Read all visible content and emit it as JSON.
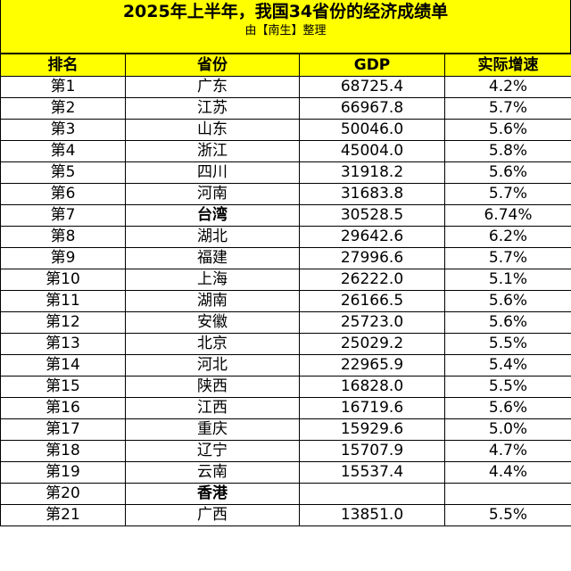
{
  "header": {
    "title": "2025年上半年，我国34省份的经济成绩单",
    "subtitle": "由【南生】整理",
    "colors": {
      "header_bg": "#ffff00",
      "border": "#000000"
    }
  },
  "table": {
    "columns": [
      "排名",
      "省份",
      "GDP",
      "实际增速"
    ],
    "rows": [
      {
        "rank": "第1",
        "province": "广东",
        "gdp": "68725.4",
        "growth": "4.2%",
        "emphasis": false
      },
      {
        "rank": "第2",
        "province": "江苏",
        "gdp": "66967.8",
        "growth": "5.7%",
        "emphasis": false
      },
      {
        "rank": "第3",
        "province": "山东",
        "gdp": "50046.0",
        "growth": "5.6%",
        "emphasis": false
      },
      {
        "rank": "第4",
        "province": "浙江",
        "gdp": "45004.0",
        "growth": "5.8%",
        "emphasis": false
      },
      {
        "rank": "第5",
        "province": "四川",
        "gdp": "31918.2",
        "growth": "5.6%",
        "emphasis": false
      },
      {
        "rank": "第6",
        "province": "河南",
        "gdp": "31683.8",
        "growth": "5.7%",
        "emphasis": false
      },
      {
        "rank": "第7",
        "province": "台湾",
        "gdp": "30528.5",
        "growth": "6.74%",
        "emphasis": true
      },
      {
        "rank": "第8",
        "province": "湖北",
        "gdp": "29642.6",
        "growth": "6.2%",
        "emphasis": false
      },
      {
        "rank": "第9",
        "province": "福建",
        "gdp": "27996.6",
        "growth": "5.7%",
        "emphasis": false
      },
      {
        "rank": "第10",
        "province": "上海",
        "gdp": "26222.0",
        "growth": "5.1%",
        "emphasis": false
      },
      {
        "rank": "第11",
        "province": "湖南",
        "gdp": "26166.5",
        "growth": "5.6%",
        "emphasis": false
      },
      {
        "rank": "第12",
        "province": "安徽",
        "gdp": "25723.0",
        "growth": "5.6%",
        "emphasis": false
      },
      {
        "rank": "第13",
        "province": "北京",
        "gdp": "25029.2",
        "growth": "5.5%",
        "emphasis": false
      },
      {
        "rank": "第14",
        "province": "河北",
        "gdp": "22965.9",
        "growth": "5.4%",
        "emphasis": false
      },
      {
        "rank": "第15",
        "province": "陕西",
        "gdp": "16828.0",
        "growth": "5.5%",
        "emphasis": false
      },
      {
        "rank": "第16",
        "province": "江西",
        "gdp": "16719.6",
        "growth": "5.6%",
        "emphasis": false
      },
      {
        "rank": "第17",
        "province": "重庆",
        "gdp": "15929.6",
        "growth": "5.0%",
        "emphasis": false
      },
      {
        "rank": "第18",
        "province": "辽宁",
        "gdp": "15707.9",
        "growth": "4.7%",
        "emphasis": false
      },
      {
        "rank": "第19",
        "province": "云南",
        "gdp": "15537.4",
        "growth": "4.4%",
        "emphasis": false
      },
      {
        "rank": "第20",
        "province": "香港",
        "gdp": "",
        "growth": "",
        "emphasis": true
      },
      {
        "rank": "第21",
        "province": "广西",
        "gdp": "13851.0",
        "growth": "5.5%",
        "emphasis": false
      }
    ]
  }
}
